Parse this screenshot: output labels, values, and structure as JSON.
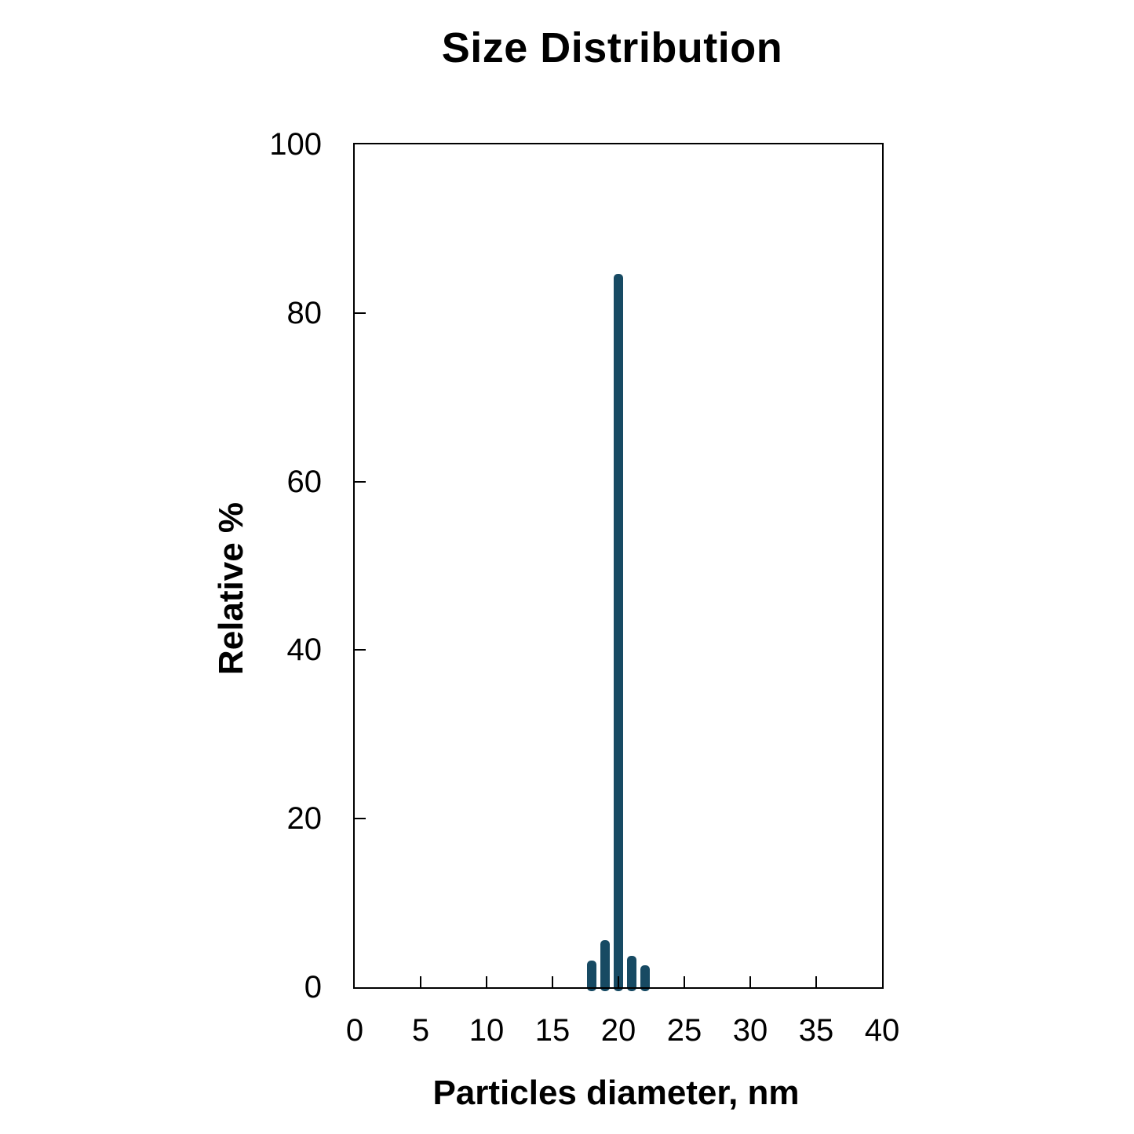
{
  "chart_data": {
    "type": "bar",
    "title": "Size Distribution",
    "xlabel": "Particles diameter, nm",
    "ylabel": "Relative %",
    "x": [
      18,
      19,
      20,
      21,
      22
    ],
    "values": [
      3.2,
      5.6,
      84.6,
      3.7,
      2.6
    ],
    "xlim": [
      0,
      40
    ],
    "ylim": [
      0,
      100
    ],
    "xticks": [
      0,
      5,
      10,
      15,
      20,
      25,
      30,
      35,
      40
    ],
    "yticks": [
      0,
      20,
      40,
      60,
      80,
      100
    ],
    "bar_color": "#174A63",
    "axis_color": "#000000",
    "background_color": "#FFFFFF",
    "grid": "off",
    "legend": "none"
  }
}
